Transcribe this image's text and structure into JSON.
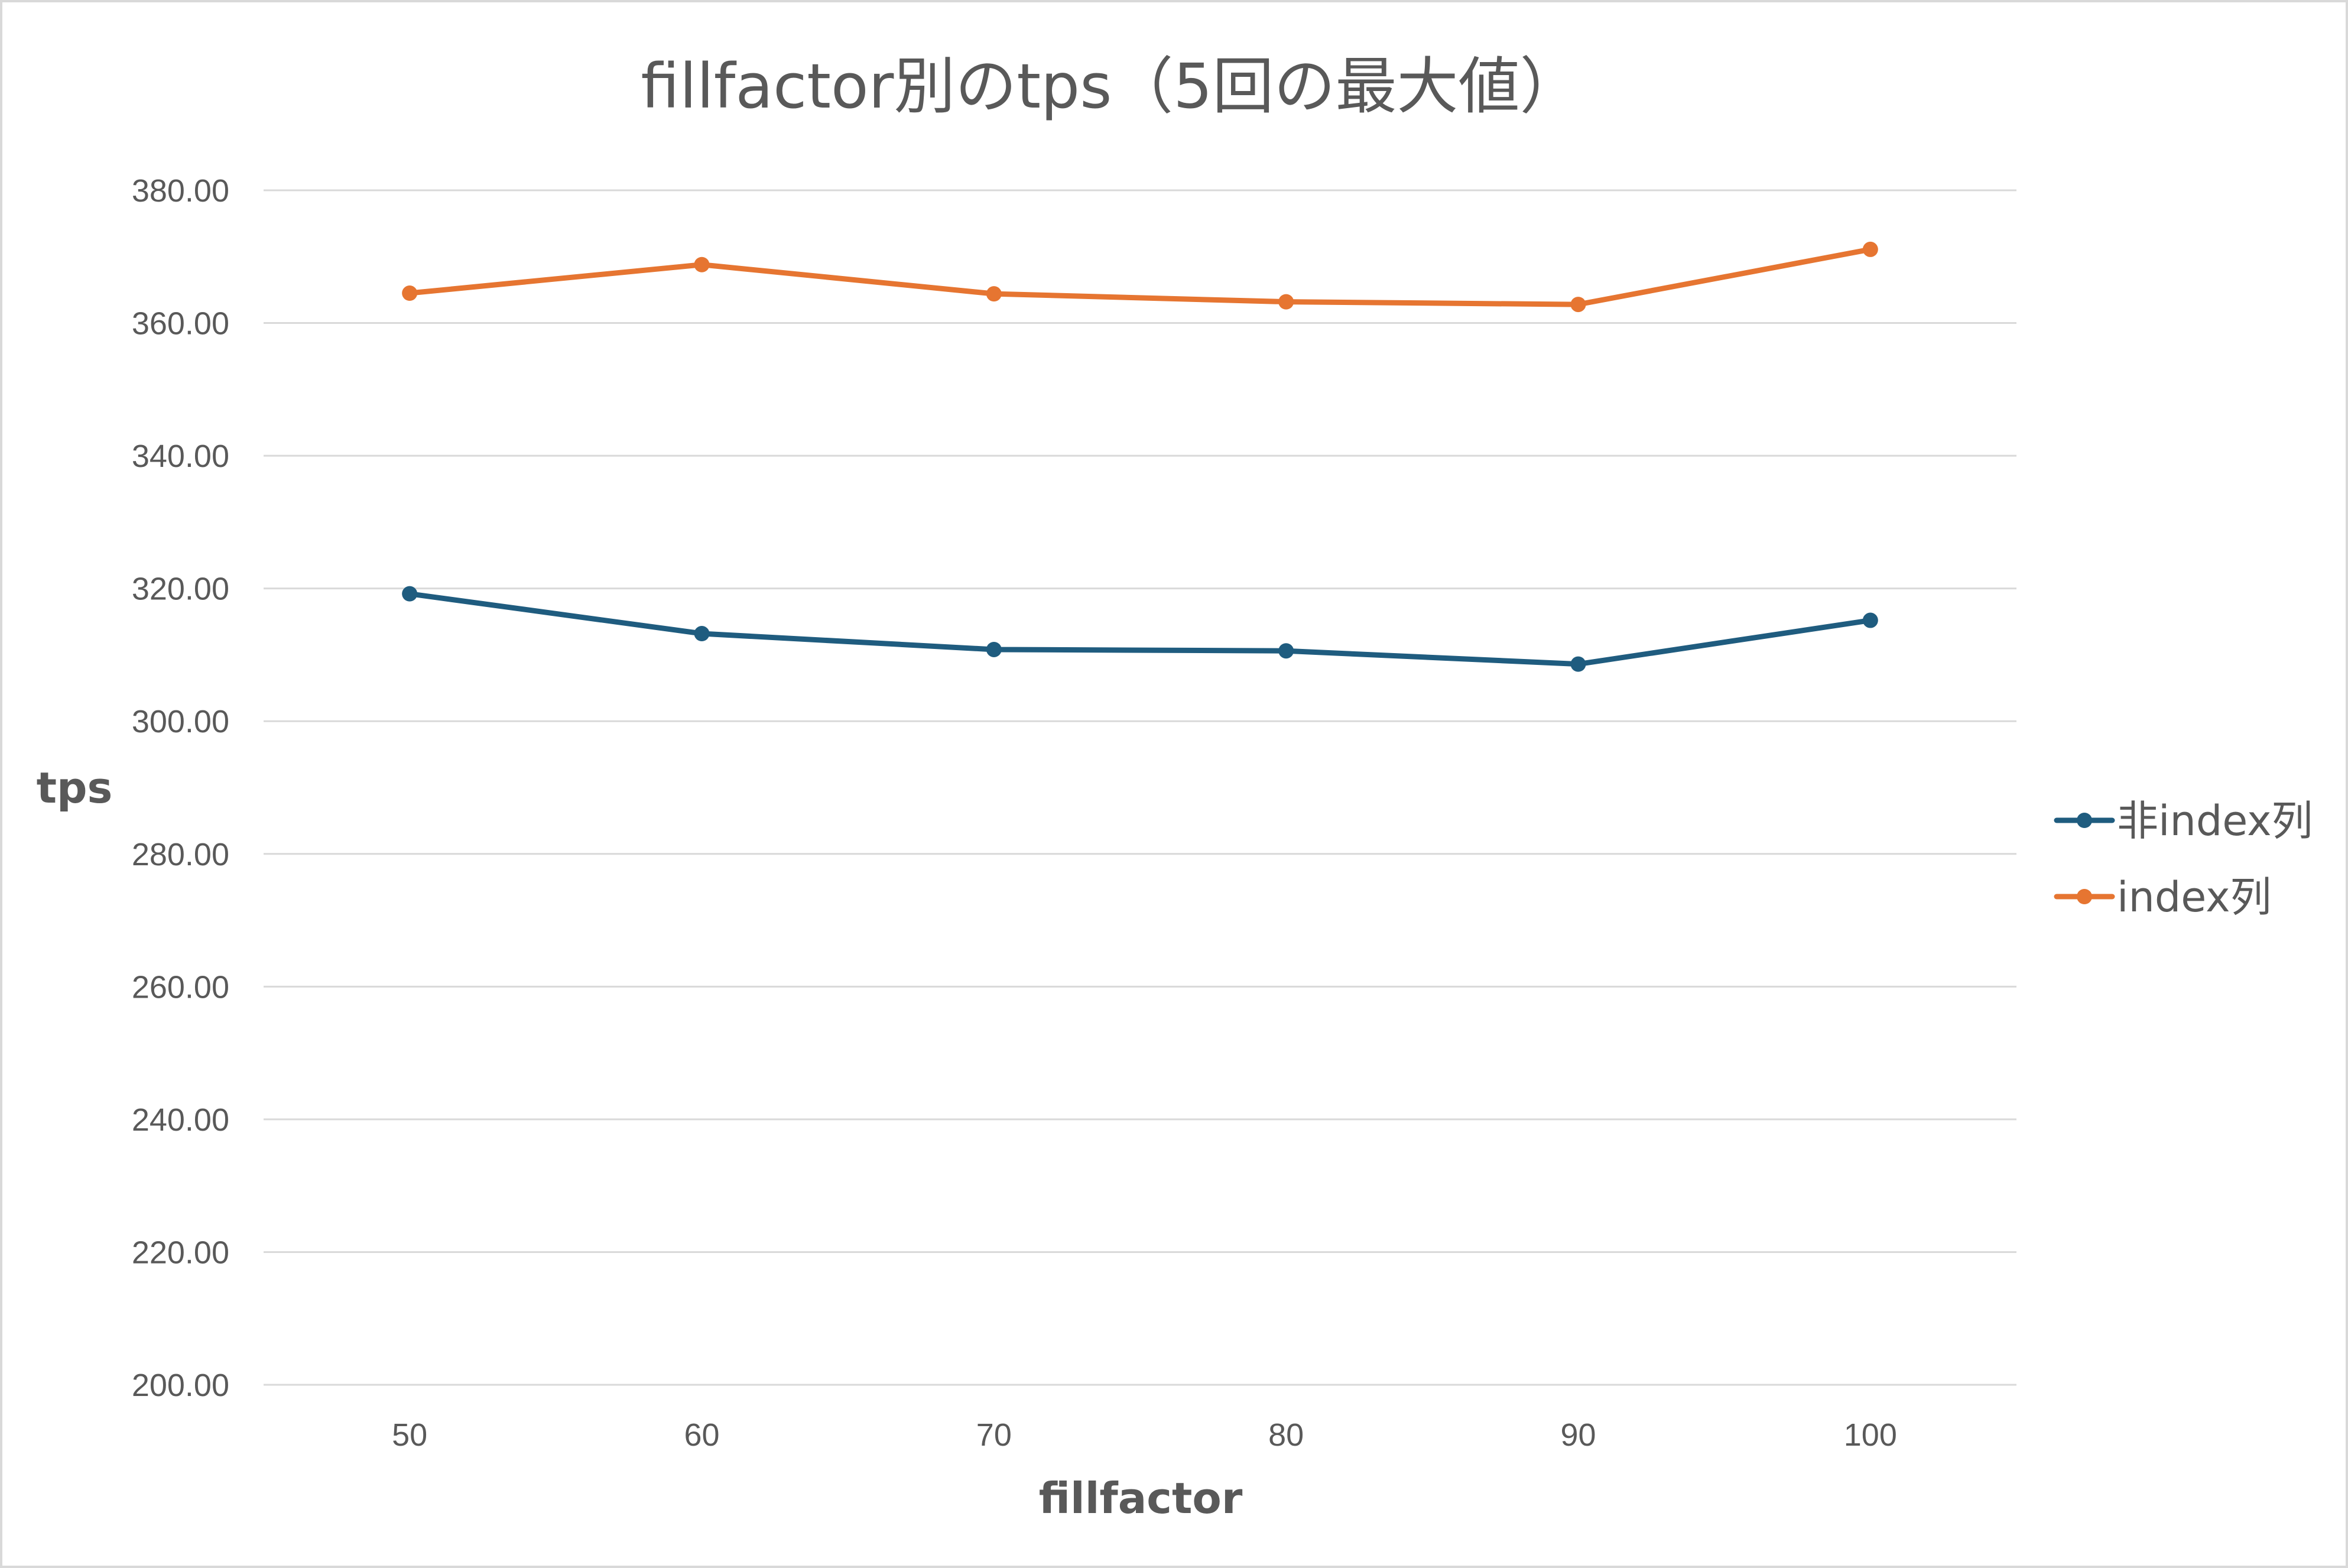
{
  "chart_data": {
    "type": "line",
    "title": "fillfactor別のtps（5回の最大値）",
    "xlabel": "fillfactor",
    "ylabel": "tps",
    "categories": [
      "50",
      "60",
      "70",
      "80",
      "90",
      "100"
    ],
    "ylim": [
      200,
      380
    ],
    "ytick_labels": [
      "200.00",
      "220.00",
      "240.00",
      "260.00",
      "280.00",
      "300.00",
      "320.00",
      "340.00",
      "360.00",
      "380.00"
    ],
    "grid": true,
    "legend_position": "right",
    "series": [
      {
        "name": "非index列",
        "color": "#1f5c7f",
        "values": [
          319.2,
          313.2,
          310.8,
          310.6,
          308.6,
          315.2
        ]
      },
      {
        "name": "index列",
        "color": "#e67531",
        "values": [
          364.5,
          368.8,
          364.4,
          363.2,
          362.8,
          371.1
        ]
      }
    ]
  }
}
